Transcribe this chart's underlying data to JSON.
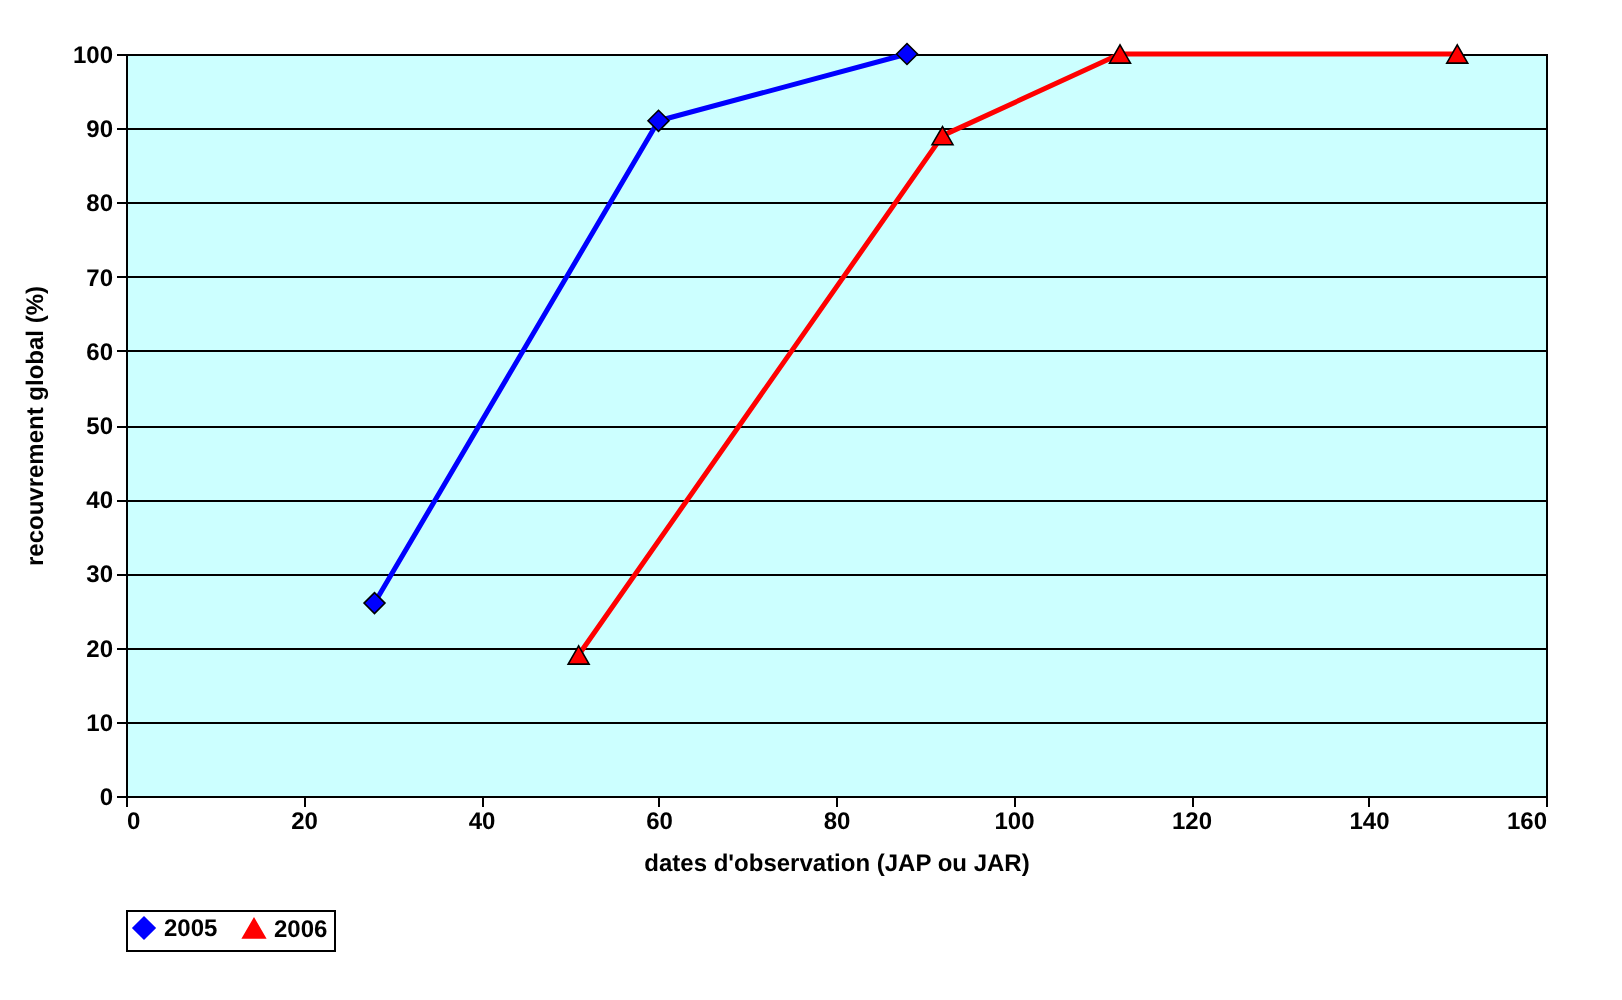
{
  "chart_data": {
    "type": "line",
    "xlabel": "dates d'observation (JAP ou JAR)",
    "ylabel": "recouvrement global (%)",
    "xlim": [
      0,
      160
    ],
    "xticks": [
      0,
      20,
      40,
      60,
      80,
      100,
      120,
      140,
      160
    ],
    "ylim": [
      0,
      100
    ],
    "yticks": [
      0,
      10,
      20,
      30,
      40,
      50,
      60,
      70,
      80,
      90,
      100
    ],
    "grid": "y",
    "legend": "bottom",
    "line_style": "solid",
    "series": [
      {
        "name": "2005",
        "color": "#0000ff",
        "marker": "diamond",
        "x": [
          28,
          60,
          88
        ],
        "values": [
          26,
          91,
          100
        ]
      },
      {
        "name": "2006",
        "color": "#ff0000",
        "marker": "triangle",
        "x": [
          51,
          92,
          112,
          150
        ],
        "values": [
          19,
          89,
          100,
          100
        ]
      }
    ]
  }
}
